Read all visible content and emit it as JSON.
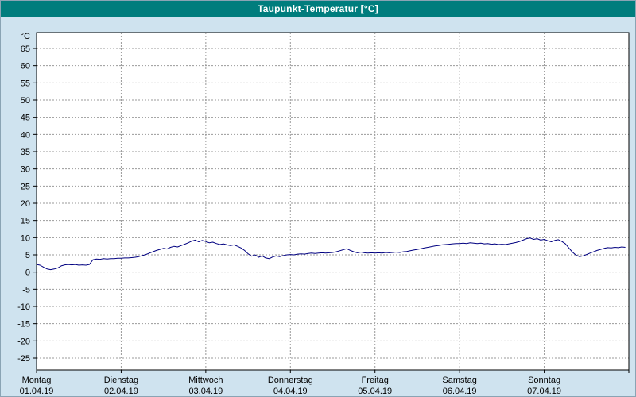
{
  "title": "Taupunkt-Temperatur [°C]",
  "colors": {
    "title_bg": "#007d7d",
    "title_text": "#ffffff",
    "background": "#cfe3ef",
    "plot_bg": "#ffffff",
    "grid": "#999999",
    "axis": "#000000",
    "line": "#000080"
  },
  "chart_data": {
    "type": "line",
    "title": "Taupunkt-Temperatur [°C]",
    "ylabel": "°C",
    "y_unit_label": "°C",
    "grid": "dashed",
    "legend": "none",
    "y_ticks": [
      65,
      60,
      55,
      50,
      45,
      40,
      35,
      30,
      25,
      20,
      15,
      10,
      5,
      0,
      -5,
      -10,
      -15,
      -20,
      -25
    ],
    "ylim": [
      -28.5,
      69.6
    ],
    "x_range": [
      0,
      168
    ],
    "x_unit": "hours",
    "x_days": [
      {
        "name": "Montag",
        "date": "01.04.19"
      },
      {
        "name": "Dienstag",
        "date": "02.04.19"
      },
      {
        "name": "Mittwoch",
        "date": "03.04.19"
      },
      {
        "name": "Donnerstag",
        "date": "04.04.19"
      },
      {
        "name": "Freitag",
        "date": "05.04.19"
      },
      {
        "name": "Samstag",
        "date": "06.04.19"
      },
      {
        "name": "Sonntag",
        "date": "07.04.19"
      }
    ],
    "series": [
      {
        "name": "taupunkt",
        "label": "Taupunkt-Temperatur",
        "color": "#000080",
        "points": [
          [
            0,
            2.2
          ],
          [
            1,
            2.0
          ],
          [
            2,
            1.4
          ],
          [
            3,
            0.9
          ],
          [
            4,
            0.7
          ],
          [
            5,
            0.9
          ],
          [
            6,
            1.2
          ],
          [
            7,
            1.8
          ],
          [
            8,
            2.1
          ],
          [
            9,
            2.2
          ],
          [
            10,
            2.1
          ],
          [
            11,
            2.2
          ],
          [
            12,
            2.0
          ],
          [
            13,
            2.1
          ],
          [
            14,
            2.0
          ],
          [
            15,
            2.2
          ],
          [
            16,
            3.6
          ],
          [
            17,
            3.8
          ],
          [
            18,
            3.7
          ],
          [
            19,
            3.9
          ],
          [
            20,
            3.8
          ],
          [
            21,
            3.9
          ],
          [
            22,
            3.9
          ],
          [
            23,
            4.0
          ],
          [
            24,
            4.0
          ],
          [
            25,
            4.1
          ],
          [
            26,
            4.1
          ],
          [
            27,
            4.2
          ],
          [
            28,
            4.3
          ],
          [
            29,
            4.5
          ],
          [
            30,
            4.8
          ],
          [
            31,
            5.1
          ],
          [
            32,
            5.5
          ],
          [
            33,
            5.9
          ],
          [
            34,
            6.3
          ],
          [
            35,
            6.6
          ],
          [
            36,
            6.9
          ],
          [
            37,
            6.7
          ],
          [
            38,
            7.2
          ],
          [
            39,
            7.5
          ],
          [
            40,
            7.3
          ],
          [
            41,
            7.7
          ],
          [
            42,
            8.1
          ],
          [
            43,
            8.5
          ],
          [
            44,
            9.0
          ],
          [
            45,
            9.3
          ],
          [
            46,
            8.8
          ],
          [
            47,
            9.2
          ],
          [
            48,
            8.9
          ],
          [
            49,
            8.5
          ],
          [
            50,
            8.7
          ],
          [
            51,
            8.3
          ],
          [
            52,
            8.0
          ],
          [
            53,
            8.2
          ],
          [
            54,
            7.9
          ],
          [
            55,
            7.7
          ],
          [
            56,
            7.9
          ],
          [
            57,
            7.5
          ],
          [
            58,
            7.0
          ],
          [
            59,
            6.3
          ],
          [
            60,
            5.3
          ],
          [
            61,
            4.6
          ],
          [
            62,
            5.0
          ],
          [
            63,
            4.3
          ],
          [
            64,
            4.7
          ],
          [
            65,
            4.1
          ],
          [
            66,
            3.9
          ],
          [
            67,
            4.4
          ],
          [
            68,
            4.7
          ],
          [
            69,
            4.5
          ],
          [
            70,
            4.8
          ],
          [
            71,
            5.0
          ],
          [
            72,
            5.1
          ],
          [
            73,
            5.0
          ],
          [
            74,
            5.2
          ],
          [
            75,
            5.3
          ],
          [
            76,
            5.2
          ],
          [
            77,
            5.4
          ],
          [
            78,
            5.5
          ],
          [
            79,
            5.4
          ],
          [
            80,
            5.5
          ],
          [
            81,
            5.6
          ],
          [
            82,
            5.5
          ],
          [
            83,
            5.6
          ],
          [
            84,
            5.7
          ],
          [
            85,
            5.9
          ],
          [
            86,
            6.2
          ],
          [
            87,
            6.5
          ],
          [
            88,
            6.8
          ],
          [
            89,
            6.3
          ],
          [
            90,
            5.9
          ],
          [
            91,
            5.6
          ],
          [
            92,
            5.8
          ],
          [
            93,
            5.6
          ],
          [
            94,
            5.5
          ],
          [
            95,
            5.6
          ],
          [
            96,
            5.5
          ],
          [
            97,
            5.6
          ],
          [
            98,
            5.5
          ],
          [
            99,
            5.7
          ],
          [
            100,
            5.6
          ],
          [
            101,
            5.7
          ],
          [
            102,
            5.8
          ],
          [
            103,
            5.7
          ],
          [
            104,
            5.9
          ],
          [
            105,
            6.0
          ],
          [
            106,
            6.2
          ],
          [
            107,
            6.4
          ],
          [
            108,
            6.6
          ],
          [
            109,
            6.8
          ],
          [
            110,
            7.0
          ],
          [
            111,
            7.2
          ],
          [
            112,
            7.4
          ],
          [
            113,
            7.6
          ],
          [
            114,
            7.7
          ],
          [
            115,
            7.9
          ],
          [
            116,
            8.0
          ],
          [
            117,
            8.1
          ],
          [
            118,
            8.2
          ],
          [
            119,
            8.3
          ],
          [
            120,
            8.3
          ],
          [
            121,
            8.4
          ],
          [
            122,
            8.3
          ],
          [
            123,
            8.5
          ],
          [
            124,
            8.4
          ],
          [
            125,
            8.3
          ],
          [
            126,
            8.4
          ],
          [
            127,
            8.2
          ],
          [
            128,
            8.3
          ],
          [
            129,
            8.1
          ],
          [
            130,
            8.2
          ],
          [
            131,
            8.0
          ],
          [
            132,
            8.1
          ],
          [
            133,
            8.0
          ],
          [
            134,
            8.2
          ],
          [
            135,
            8.4
          ],
          [
            136,
            8.6
          ],
          [
            137,
            8.9
          ],
          [
            138,
            9.3
          ],
          [
            139,
            9.7
          ],
          [
            140,
            9.9
          ],
          [
            141,
            9.5
          ],
          [
            142,
            9.7
          ],
          [
            143,
            9.3
          ],
          [
            144,
            9.5
          ],
          [
            145,
            9.1
          ],
          [
            146,
            8.8
          ],
          [
            147,
            9.2
          ],
          [
            148,
            9.4
          ],
          [
            149,
            8.9
          ],
          [
            150,
            8.2
          ],
          [
            151,
            7.0
          ],
          [
            152,
            5.8
          ],
          [
            153,
            4.9
          ],
          [
            154,
            4.5
          ],
          [
            155,
            4.7
          ],
          [
            156,
            5.1
          ],
          [
            157,
            5.5
          ],
          [
            158,
            5.9
          ],
          [
            159,
            6.3
          ],
          [
            160,
            6.6
          ],
          [
            161,
            6.9
          ],
          [
            162,
            7.1
          ],
          [
            163,
            7.0
          ],
          [
            164,
            7.2
          ],
          [
            165,
            7.1
          ],
          [
            166,
            7.3
          ],
          [
            167,
            7.2
          ]
        ]
      }
    ]
  }
}
